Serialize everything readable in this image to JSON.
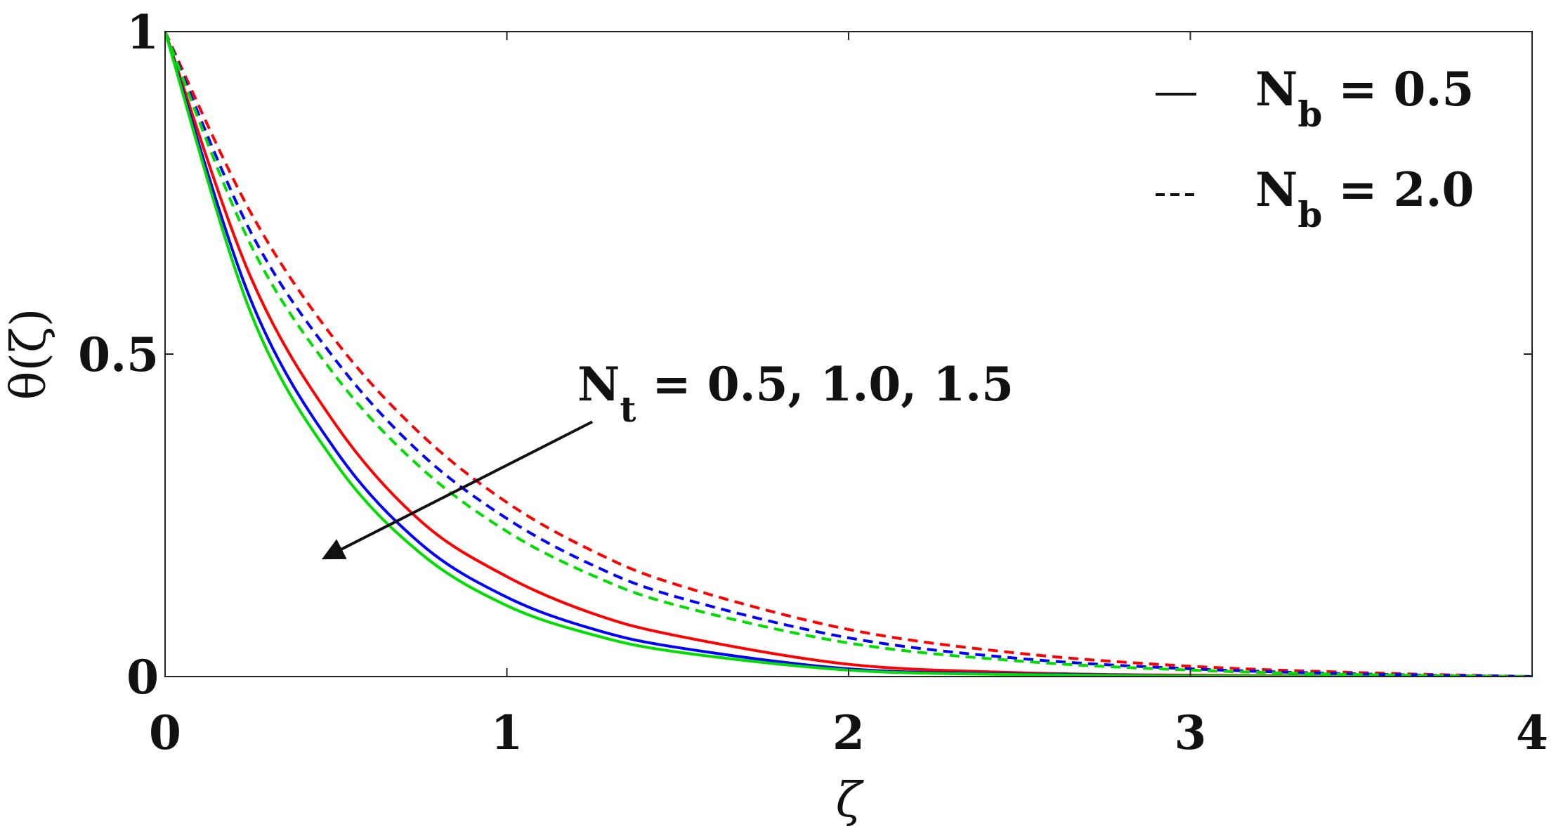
{
  "chart_data": {
    "type": "line",
    "xlabel": "ζ",
    "ylabel": "θ(ζ)",
    "xlim": [
      0,
      4
    ],
    "ylim": [
      0,
      1
    ],
    "xticks": [
      "0",
      "1",
      "2",
      "3",
      "4"
    ],
    "yticks": [
      "0",
      "0.5",
      "1"
    ],
    "x": [
      0,
      0.25,
      0.5,
      0.75,
      1.0,
      1.25,
      1.5,
      2.0,
      2.5,
      3.0,
      3.5,
      4.0
    ],
    "series": [
      {
        "color": "#ff0000",
        "dash": "solid",
        "values": [
          1.0,
          0.62,
          0.39,
          0.24,
          0.155,
          0.098,
          0.063,
          0.019,
          0.006,
          0.002,
          0.0005,
          0.0
        ]
      },
      {
        "color": "#0000ff",
        "dash": "solid",
        "values": [
          1.0,
          0.585,
          0.35,
          0.205,
          0.123,
          0.074,
          0.045,
          0.012,
          0.004,
          0.001,
          0.0003,
          0.0
        ]
      },
      {
        "color": "#00dd00",
        "dash": "solid",
        "values": [
          1.0,
          0.565,
          0.33,
          0.19,
          0.11,
          0.065,
          0.038,
          0.01,
          0.003,
          0.0008,
          0.0002,
          0.0
        ]
      },
      {
        "color": "#ff0000",
        "dash": "dashed",
        "values": [
          1.0,
          0.72,
          0.52,
          0.375,
          0.27,
          0.195,
          0.142,
          0.073,
          0.036,
          0.016,
          0.006,
          0.0
        ]
      },
      {
        "color": "#0000ff",
        "dash": "dashed",
        "values": [
          1.0,
          0.69,
          0.49,
          0.345,
          0.245,
          0.173,
          0.123,
          0.06,
          0.028,
          0.012,
          0.004,
          0.0
        ]
      },
      {
        "color": "#00dd00",
        "dash": "dashed",
        "values": [
          1.0,
          0.67,
          0.465,
          0.323,
          0.225,
          0.157,
          0.11,
          0.052,
          0.024,
          0.01,
          0.003,
          0.0
        ]
      }
    ],
    "legend": {
      "placement": "top-right",
      "entries": [
        {
          "dash": "solid",
          "main": "N",
          "sub": "b",
          "rest": " = 0.5"
        },
        {
          "dash": "dashed",
          "main": "N",
          "sub": "b",
          "rest": " = 2.0"
        }
      ]
    },
    "annotation": {
      "main": "N",
      "sub": "t",
      "rest": " = 0.5, 1.0, 1.5",
      "arrow_from": [
        1.25,
        0.395
      ],
      "arrow_to": [
        0.47,
        0.185
      ]
    },
    "grid": false
  }
}
